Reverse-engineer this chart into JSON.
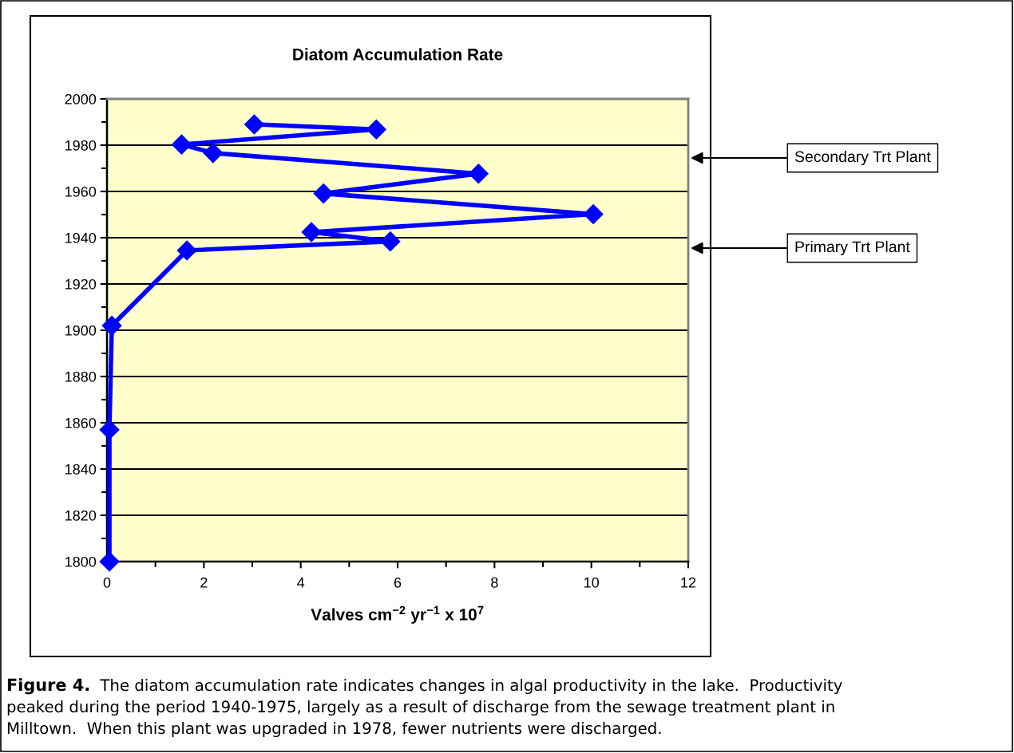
{
  "chart_data": {
    "type": "line",
    "title": "Diatom Accumulation Rate",
    "xlabel": "Valves cm$^{−2}$ yr$^{−1}$ x 10$^{7}$",
    "x": [
      0.05,
      0.05,
      0.1,
      1.65,
      5.85,
      4.22,
      10.04,
      4.47,
      7.67,
      2.19,
      1.54,
      5.56,
      3.04
    ],
    "series": [
      {
        "color": "#0000ff",
        "values": [
          1800,
          1857,
          1902,
          1934.5,
          1938.4,
          1942.4,
          1950.2,
          1959.1,
          1967.7,
          1976.6,
          1980.3,
          1986.8,
          1989
        ]
      }
    ],
    "xlim": [
      0,
      12
    ],
    "xticks": [
      0,
      {
        "value": 1,
        "label": null
      },
      2,
      {
        "value": 3,
        "label": null
      },
      4,
      {
        "value": 5,
        "label": null
      },
      6,
      {
        "value": 7,
        "label": null
      },
      8,
      {
        "value": 9,
        "label": null
      },
      10,
      {
        "value": 11,
        "label": null
      },
      12
    ],
    "ylim": [
      1800,
      2000
    ],
    "yticks": [
      1800,
      {
        "value": 1810,
        "label": null
      },
      1820,
      {
        "value": 1830,
        "label": null
      },
      1840,
      {
        "value": 1850,
        "label": null
      },
      1860,
      {
        "value": 1870,
        "label": null
      },
      1880,
      {
        "value": 1890,
        "label": null
      },
      1900,
      {
        "value": 1910,
        "label": null
      },
      1920,
      {
        "value": 1930,
        "label": null
      },
      1940,
      {
        "value": 1950,
        "label": null
      },
      1960,
      {
        "value": 1970,
        "label": null
      },
      1980,
      {
        "value": 1990,
        "label": null
      },
      2000
    ],
    "grid": "y",
    "marker": "diamond",
    "line_style": "solid",
    "annotations": [
      "Secondary Trt Plant",
      "Primary Trt Plant",
      "Figure 4.",
      "The diatom accumulation rate indicates changes in algal productivity in the lake.  Productivity\npeaked during the period 1940-1975, largely as a result of discharge from the sewage treatment plant in\nMilltown.  When this plant was upgraded in 1978, fewer nutrients were discharged."
    ]
  }
}
